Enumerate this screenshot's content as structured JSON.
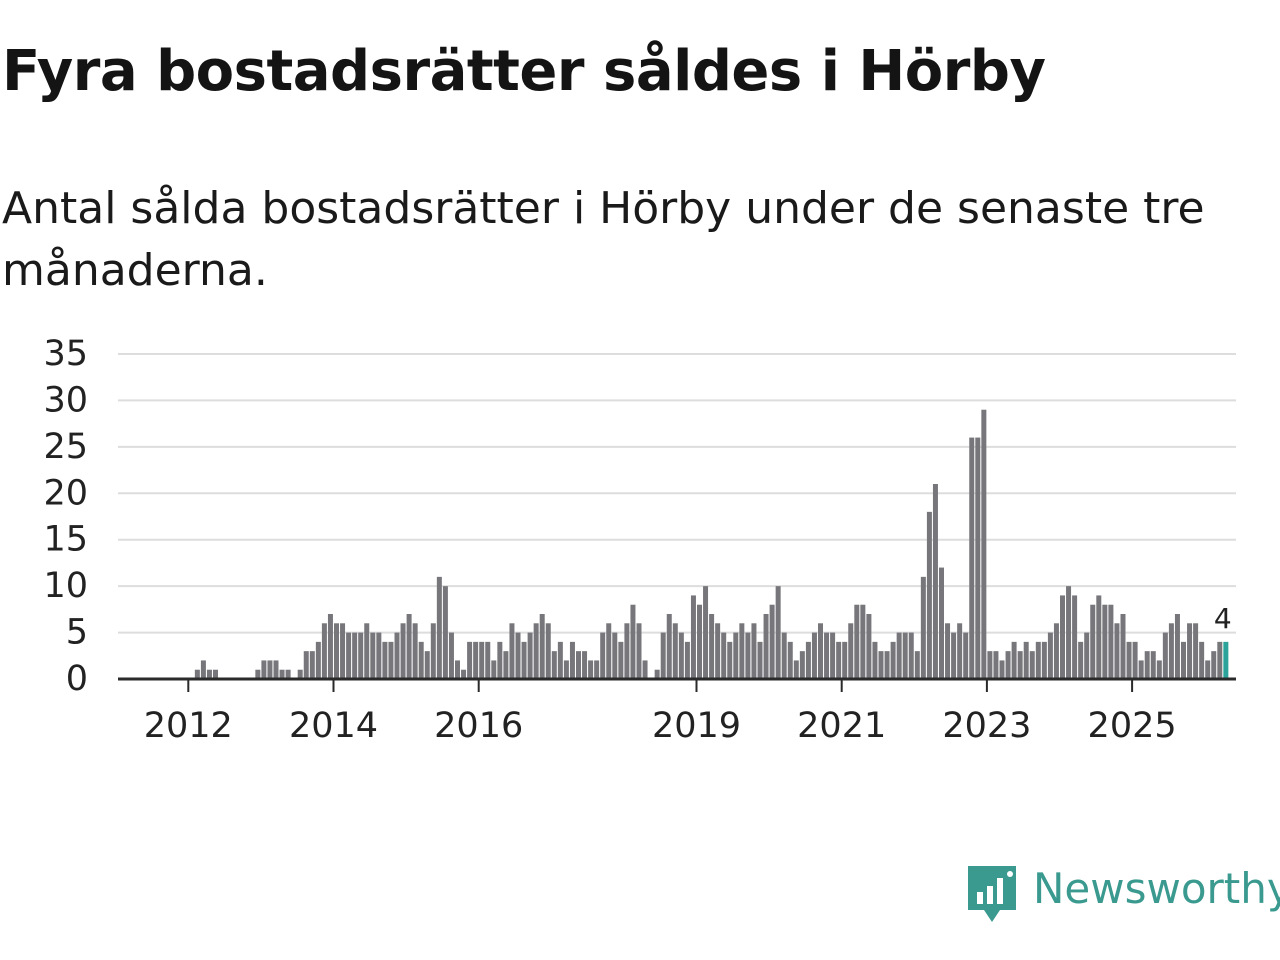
{
  "title": "Fyra bostadsrätter såldes i Hörby",
  "subtitle": "Antal sålda bostadsrätter i Hörby under de senaste tre månaderna.",
  "brand": {
    "name": "Newsworthy",
    "color": "#3a9a8f"
  },
  "colors": {
    "bar": "#77767b",
    "highlight": "#2ba39a",
    "grid": "#dddddd",
    "axis": "#2a2a2a",
    "text": "#222222"
  },
  "chart_data": {
    "type": "bar",
    "x_start": "2011-01",
    "y_ticks": [
      0,
      5,
      10,
      15,
      20,
      25,
      30,
      35
    ],
    "ylim": [
      0,
      35
    ],
    "x_ticks": [
      "2012",
      "2014",
      "2016",
      "2019",
      "2021",
      "2023",
      "2025"
    ],
    "grid": true,
    "highlight_label": "4",
    "values": [
      0,
      0,
      0,
      0,
      0,
      0,
      0,
      0,
      0,
      0,
      0,
      0,
      0,
      1,
      2,
      1,
      1,
      0,
      0,
      0,
      0,
      0,
      0,
      1,
      2,
      2,
      2,
      1,
      1,
      0,
      1,
      3,
      3,
      4,
      6,
      7,
      6,
      6,
      5,
      5,
      5,
      6,
      5,
      5,
      4,
      4,
      5,
      6,
      7,
      6,
      4,
      3,
      6,
      11,
      10,
      5,
      2,
      1,
      4,
      4,
      4,
      4,
      2,
      4,
      3,
      6,
      5,
      4,
      5,
      6,
      7,
      6,
      3,
      4,
      2,
      4,
      3,
      3,
      2,
      2,
      5,
      6,
      5,
      4,
      6,
      8,
      6,
      2,
      0,
      1,
      5,
      7,
      6,
      5,
      4,
      9,
      8,
      10,
      7,
      6,
      5,
      4,
      5,
      6,
      5,
      6,
      4,
      7,
      8,
      10,
      5,
      4,
      2,
      3,
      4,
      5,
      6,
      5,
      5,
      4,
      4,
      6,
      8,
      8,
      7,
      4,
      3,
      3,
      4,
      5,
      5,
      5,
      3,
      11,
      18,
      21,
      12,
      6,
      5,
      6,
      5,
      26,
      26,
      29,
      3,
      3,
      2,
      3,
      4,
      3,
      4,
      3,
      4,
      4,
      5,
      6,
      9,
      10,
      9,
      4,
      5,
      8,
      9,
      8,
      8,
      6,
      7,
      4,
      4,
      2,
      3,
      3,
      2,
      5,
      6,
      7,
      4,
      6,
      6,
      4,
      2,
      3,
      4,
      4
    ]
  }
}
